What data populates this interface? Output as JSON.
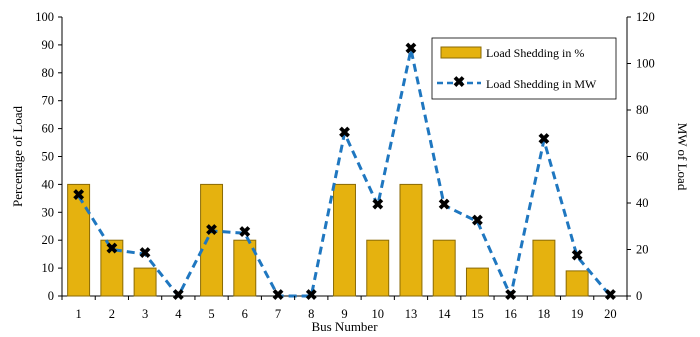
{
  "chart_data": {
    "type": "bar",
    "categories": [
      "1",
      "2",
      "3",
      "4",
      "5",
      "6",
      "7",
      "8",
      "9",
      "10",
      "13",
      "14",
      "15",
      "16",
      "18",
      "19",
      "20"
    ],
    "series": [
      {
        "name": "Load Shedding in %",
        "type": "bar",
        "axis": "left",
        "values": [
          40,
          20,
          10,
          0,
          40,
          20,
          0,
          0,
          40,
          20,
          40,
          20,
          10,
          0,
          20,
          9,
          0
        ]
      },
      {
        "name": "Load Shedding in MW",
        "type": "line",
        "axis": "right",
        "values": [
          43,
          20,
          18,
          0,
          28,
          27,
          0,
          0,
          70,
          39,
          106,
          39,
          32,
          0,
          67,
          17,
          0
        ]
      }
    ],
    "xlabel": "Bus Number",
    "ylabel": "Percentage of Load",
    "y2label": "MW of Load",
    "ylim": [
      0,
      100
    ],
    "y2lim": [
      0,
      120
    ],
    "yticks": [
      "0",
      "10",
      "20",
      "30",
      "40",
      "50",
      "60",
      "70",
      "80",
      "90",
      "100"
    ],
    "y2ticks": [
      "0",
      "20",
      "40",
      "60",
      "80",
      "100",
      "120"
    ],
    "legend_position": "top-right",
    "colors": {
      "bar_fill": "#E5B20F",
      "bar_stroke": "#8A6A05",
      "line": "#1F77C0",
      "marker": "#0A1A4A"
    }
  }
}
